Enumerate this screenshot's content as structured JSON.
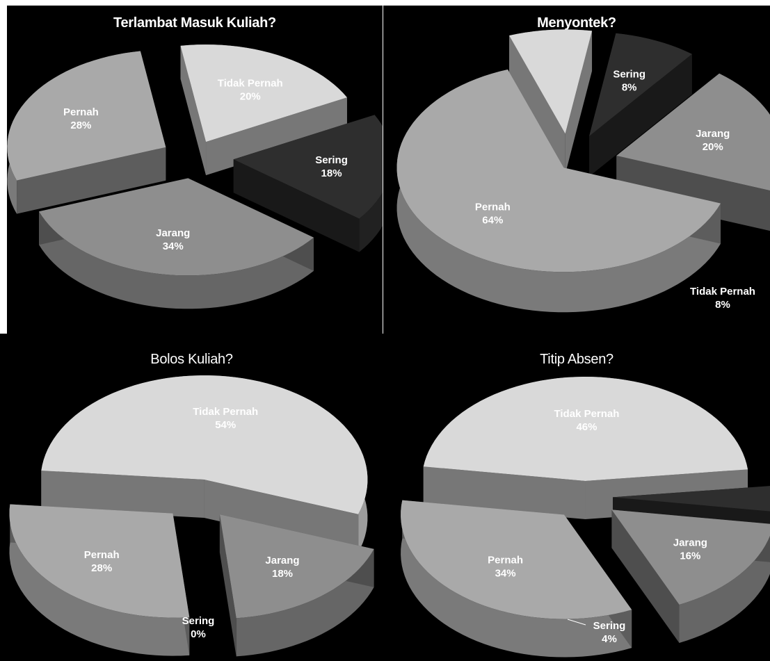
{
  "chart_data": [
    {
      "type": "pie",
      "title": "Terlambat Masuk Kuliah?",
      "categories": [
        "Pernah",
        "Tidak Pernah",
        "Sering",
        "Jarang"
      ],
      "values": [
        28,
        20,
        18,
        34
      ],
      "labels": [
        "28%",
        "20%",
        "18%",
        "34%"
      ],
      "colors": [
        "#a9a9a9",
        "#d9d9d9",
        "#2e2e2e",
        "#8e8e8e"
      ],
      "style": "3d-exploded"
    },
    {
      "type": "pie",
      "title": "Menyontek?",
      "categories": [
        "Pernah",
        "Tidak Pernah",
        "Sering",
        "Jarang"
      ],
      "values": [
        64,
        8,
        8,
        20
      ],
      "labels": [
        "64%",
        "8%",
        "8%",
        "20%"
      ],
      "colors": [
        "#a9a9a9",
        "#d9d9d9",
        "#2e2e2e",
        "#8e8e8e"
      ],
      "style": "3d-exploded"
    },
    {
      "type": "pie",
      "title": "Bolos Kuliah?",
      "categories": [
        "Tidak Pernah",
        "Sering",
        "Jarang",
        "Pernah"
      ],
      "values": [
        54,
        0,
        18,
        28
      ],
      "labels": [
        "54%",
        "0%",
        "18%",
        "28%"
      ],
      "colors": [
        "#d9d9d9",
        "#2e2e2e",
        "#8e8e8e",
        "#a9a9a9"
      ],
      "style": "3d-exploded"
    },
    {
      "type": "pie",
      "title": "Titip Absen?",
      "categories": [
        "Tidak Pernah",
        "Sering",
        "Jarang",
        "Pernah"
      ],
      "values": [
        46,
        4,
        16,
        34
      ],
      "labels": [
        "46%",
        "4%",
        "16%",
        "34%"
      ],
      "colors": [
        "#d9d9d9",
        "#2e2e2e",
        "#8e8e8e",
        "#a9a9a9"
      ],
      "style": "3d-exploded"
    }
  ]
}
